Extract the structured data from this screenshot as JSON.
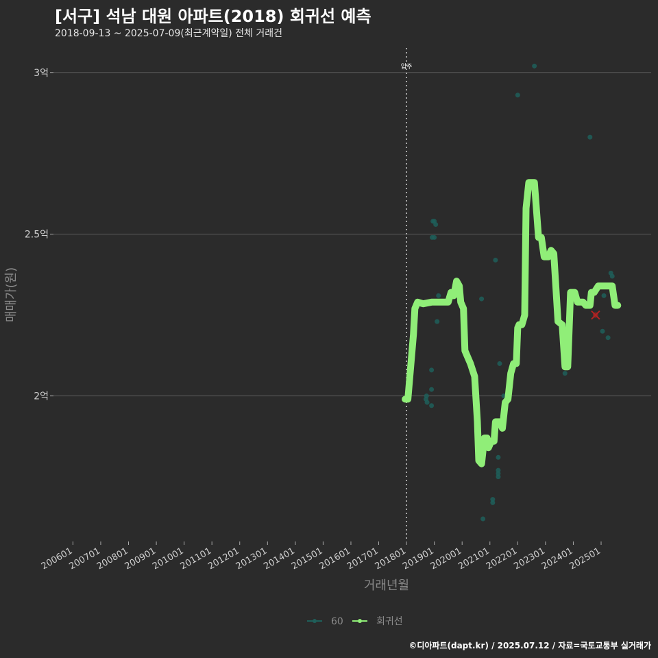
{
  "chart_data": {
    "type": "line",
    "title": "[서구] 석남 대원 아파트(2018) 회귀선 예측",
    "subtitle": "2018-09-13 ~ 2025-07-09(최근계약일) 전체 거래건",
    "xlabel": "거래년월",
    "ylabel": "매매가(원)",
    "x_range": [
      2005.3,
      2026.8
    ],
    "ylim": [
      1.55,
      3.08
    ],
    "y_ticks": [
      {
        "value": 2.0,
        "label": "2억"
      },
      {
        "value": 2.5,
        "label": "2.5억"
      },
      {
        "value": 3.0,
        "label": "3억"
      }
    ],
    "x_ticks": [
      {
        "value": 2006,
        "label": "200601"
      },
      {
        "value": 2007,
        "label": "200701"
      },
      {
        "value": 2008,
        "label": "200801"
      },
      {
        "value": 2009,
        "label": "200901"
      },
      {
        "value": 2010,
        "label": "201001"
      },
      {
        "value": 2011,
        "label": "201101"
      },
      {
        "value": 2012,
        "label": "201201"
      },
      {
        "value": 2013,
        "label": "201301"
      },
      {
        "value": 2014,
        "label": "201401"
      },
      {
        "value": 2015,
        "label": "201501"
      },
      {
        "value": 2016,
        "label": "201601"
      },
      {
        "value": 2017,
        "label": "201701"
      },
      {
        "value": 2018,
        "label": "201801"
      },
      {
        "value": 2019,
        "label": "201901"
      },
      {
        "value": 2020,
        "label": "202001"
      },
      {
        "value": 2021,
        "label": "202101"
      },
      {
        "value": 2022,
        "label": "202201"
      },
      {
        "value": 2023,
        "label": "202301"
      },
      {
        "value": 2024,
        "label": "202401"
      },
      {
        "value": 2025,
        "label": "202501"
      }
    ],
    "annotation": {
      "x": 2018.0,
      "label": "입주"
    },
    "legend": [
      "60",
      "회귀선"
    ],
    "legend_position": "bottom",
    "colors": {
      "points": "#1f5f5a",
      "regression": "#90ee78",
      "highlight": "#b22222",
      "grid": "#5a5a5a"
    },
    "points": [
      [
        2018.7,
        1.99
      ],
      [
        2018.74,
        1.98
      ],
      [
        2018.72,
        2.0
      ],
      [
        2018.9,
        2.08
      ],
      [
        2018.9,
        2.02
      ],
      [
        2018.9,
        1.97
      ],
      [
        2018.92,
        2.49
      ],
      [
        2018.95,
        2.54
      ],
      [
        2019.0,
        2.49
      ],
      [
        2019.0,
        2.54
      ],
      [
        2019.05,
        2.53
      ],
      [
        2019.1,
        2.23
      ],
      [
        2019.15,
        2.31
      ],
      [
        2020.7,
        2.3
      ],
      [
        2020.75,
        1.62
      ],
      [
        2021.1,
        1.68
      ],
      [
        2021.1,
        1.67
      ],
      [
        2021.2,
        2.42
      ],
      [
        2021.3,
        1.81
      ],
      [
        2021.3,
        1.77
      ],
      [
        2021.3,
        1.76
      ],
      [
        2021.3,
        1.75
      ],
      [
        2021.35,
        2.1
      ],
      [
        2021.5,
        2.0
      ],
      [
        2022.0,
        2.93
      ],
      [
        2022.6,
        3.02
      ],
      [
        2022.7,
        2.55
      ],
      [
        2023.7,
        2.07
      ],
      [
        2023.8,
        2.09
      ],
      [
        2024.6,
        2.8
      ],
      [
        2025.05,
        2.2
      ],
      [
        2025.1,
        2.31
      ],
      [
        2025.25,
        2.18
      ],
      [
        2025.35,
        2.38
      ],
      [
        2025.4,
        2.37
      ]
    ],
    "highlight_point": [
      2024.8,
      2.25
    ],
    "regression": [
      [
        2017.95,
        1.99
      ],
      [
        2018.05,
        1.99
      ],
      [
        2018.25,
        2.19
      ],
      [
        2018.3,
        2.27
      ],
      [
        2018.4,
        2.29
      ],
      [
        2018.6,
        2.285
      ],
      [
        2018.9,
        2.29
      ],
      [
        2019.5,
        2.29
      ],
      [
        2019.6,
        2.32
      ],
      [
        2019.7,
        2.31
      ],
      [
        2019.8,
        2.355
      ],
      [
        2019.9,
        2.34
      ],
      [
        2019.95,
        2.29
      ],
      [
        2020.05,
        2.27
      ],
      [
        2020.1,
        2.14
      ],
      [
        2020.3,
        2.1
      ],
      [
        2020.45,
        2.06
      ],
      [
        2020.55,
        1.92
      ],
      [
        2020.6,
        1.8
      ],
      [
        2020.7,
        1.79
      ],
      [
        2020.8,
        1.87
      ],
      [
        2020.9,
        1.87
      ],
      [
        2020.95,
        1.84
      ],
      [
        2021.05,
        1.86
      ],
      [
        2021.15,
        1.86
      ],
      [
        2021.2,
        1.92
      ],
      [
        2021.35,
        1.92
      ],
      [
        2021.45,
        1.9
      ],
      [
        2021.55,
        1.98
      ],
      [
        2021.65,
        1.99
      ],
      [
        2021.75,
        2.07
      ],
      [
        2021.85,
        2.1
      ],
      [
        2021.95,
        2.1
      ],
      [
        2022.0,
        2.21
      ],
      [
        2022.05,
        2.22
      ],
      [
        2022.15,
        2.22
      ],
      [
        2022.25,
        2.25
      ],
      [
        2022.3,
        2.58
      ],
      [
        2022.4,
        2.66
      ],
      [
        2022.6,
        2.66
      ],
      [
        2022.75,
        2.49
      ],
      [
        2022.85,
        2.49
      ],
      [
        2022.95,
        2.43
      ],
      [
        2023.1,
        2.43
      ],
      [
        2023.2,
        2.45
      ],
      [
        2023.3,
        2.44
      ],
      [
        2023.45,
        2.23
      ],
      [
        2023.6,
        2.22
      ],
      [
        2023.7,
        2.09
      ],
      [
        2023.8,
        2.09
      ],
      [
        2023.9,
        2.32
      ],
      [
        2024.05,
        2.32
      ],
      [
        2024.15,
        2.29
      ],
      [
        2024.35,
        2.29
      ],
      [
        2024.45,
        2.28
      ],
      [
        2024.6,
        2.28
      ],
      [
        2024.65,
        2.32
      ],
      [
        2024.75,
        2.32
      ],
      [
        2024.9,
        2.34
      ],
      [
        2025.4,
        2.34
      ],
      [
        2025.5,
        2.28
      ],
      [
        2025.6,
        2.28
      ]
    ]
  },
  "caption": "©디아파트(dapt.kr) / 2025.07.12 / 자료=국토교통부 실거래가"
}
